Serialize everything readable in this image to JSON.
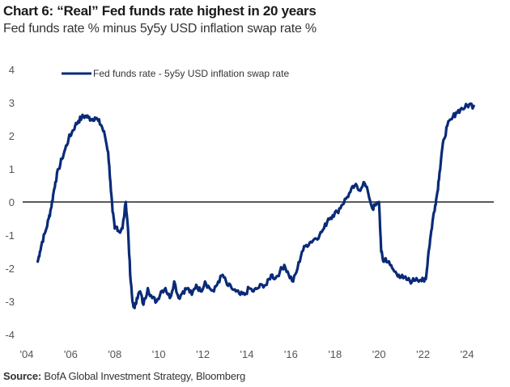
{
  "header": {
    "title": "Chart 6: “Real” Fed funds rate highest in 20 years",
    "subtitle": "Fed funds rate % minus 5y5y USD inflation swap rate %"
  },
  "footer": {
    "source_label": "Source:",
    "source_text": " BofA Global Investment Strategy, Bloomberg"
  },
  "colors": {
    "series": "#0a2a78",
    "zero_line": "#222222"
  },
  "chart_data": {
    "type": "line",
    "title": "Chart 6: “Real” Fed funds rate highest in 20 years",
    "subtitle": "Fed funds rate % minus 5y5y USD inflation swap rate %",
    "xlabel": "",
    "ylabel": "",
    "xlim": [
      2004,
      2025.2
    ],
    "ylim": [
      -4,
      4
    ],
    "y_ticks": [
      4,
      3,
      2,
      1,
      0,
      -1,
      -2,
      -3,
      -4
    ],
    "y_tick_labels": [
      "4",
      "3",
      "2",
      "1",
      "0",
      "-1",
      "-2",
      "-3",
      "-4"
    ],
    "x_ticks": [
      2004,
      2006,
      2008,
      2010,
      2012,
      2014,
      2016,
      2018,
      2020,
      2022,
      2024
    ],
    "x_tick_labels": [
      "'04",
      "'06",
      "'08",
      "'10",
      "'12",
      "'14",
      "'16",
      "'18",
      "'20",
      "'22",
      "'24"
    ],
    "grid": false,
    "reference_line": 0,
    "legend": {
      "position": "top-left",
      "entries": [
        "Fed funds rate - 5y5y USD inflation swap rate"
      ]
    },
    "series": [
      {
        "name": "Fed funds rate - 5y5y USD inflation swap rate",
        "x": [
          2004.5,
          2004.6,
          2004.7,
          2004.85,
          2005.0,
          2005.1,
          2005.2,
          2005.3,
          2005.45,
          2005.6,
          2005.75,
          2005.9,
          2006.05,
          2006.2,
          2006.35,
          2006.5,
          2006.65,
          2006.8,
          2006.95,
          2007.1,
          2007.25,
          2007.4,
          2007.55,
          2007.7,
          2007.8,
          2007.9,
          2008.0,
          2008.1,
          2008.2,
          2008.35,
          2008.5,
          2008.6,
          2008.7,
          2008.8,
          2008.9,
          2009.0,
          2009.15,
          2009.3,
          2009.5,
          2009.7,
          2009.9,
          2010.1,
          2010.3,
          2010.5,
          2010.7,
          2010.9,
          2011.1,
          2011.3,
          2011.5,
          2011.7,
          2011.9,
          2012.1,
          2012.3,
          2012.5,
          2012.7,
          2012.9,
          2013.1,
          2013.3,
          2013.5,
          2013.7,
          2013.9,
          2014.1,
          2014.3,
          2014.5,
          2014.7,
          2014.9,
          2015.1,
          2015.3,
          2015.5,
          2015.7,
          2015.9,
          2016.1,
          2016.3,
          2016.5,
          2016.7,
          2016.9,
          2017.1,
          2017.3,
          2017.5,
          2017.7,
          2017.9,
          2018.1,
          2018.3,
          2018.5,
          2018.7,
          2018.9,
          2019.1,
          2019.3,
          2019.5,
          2019.7,
          2019.85,
          2020.0,
          2020.1,
          2020.2,
          2020.3,
          2020.5,
          2020.7,
          2020.9,
          2021.1,
          2021.3,
          2021.5,
          2021.7,
          2021.9,
          2022.05,
          2022.15,
          2022.25,
          2022.35,
          2022.45,
          2022.55,
          2022.65,
          2022.75,
          2022.85,
          2022.95,
          2023.1,
          2023.3,
          2023.5,
          2023.7,
          2023.9,
          2024.1,
          2024.3
        ],
        "values": [
          -1.8,
          -1.5,
          -1.2,
          -0.9,
          -0.5,
          -0.2,
          0.2,
          0.6,
          1.0,
          1.3,
          1.6,
          1.9,
          2.1,
          2.3,
          2.45,
          2.55,
          2.6,
          2.55,
          2.5,
          2.55,
          2.45,
          2.3,
          2.0,
          1.5,
          0.6,
          -0.3,
          -0.8,
          -0.75,
          -0.9,
          -0.8,
          0.0,
          -0.8,
          -2.2,
          -3.0,
          -3.2,
          -2.9,
          -2.7,
          -3.1,
          -2.6,
          -2.9,
          -3.0,
          -2.7,
          -2.6,
          -2.9,
          -2.4,
          -2.9,
          -2.7,
          -2.6,
          -2.8,
          -2.5,
          -2.7,
          -2.4,
          -2.6,
          -2.7,
          -2.4,
          -2.2,
          -2.5,
          -2.6,
          -2.7,
          -2.8,
          -2.8,
          -2.6,
          -2.7,
          -2.6,
          -2.5,
          -2.5,
          -2.2,
          -2.3,
          -2.1,
          -1.9,
          -2.2,
          -2.4,
          -2.0,
          -1.5,
          -1.3,
          -1.2,
          -1.1,
          -1.0,
          -0.8,
          -0.5,
          -0.4,
          -0.3,
          -0.1,
          0.1,
          0.3,
          0.5,
          0.35,
          0.6,
          0.3,
          -0.2,
          -0.1,
          0.0,
          -1.5,
          -1.8,
          -1.7,
          -1.9,
          -2.1,
          -2.2,
          -2.3,
          -2.35,
          -2.4,
          -2.3,
          -2.35,
          -2.4,
          -2.2,
          -1.5,
          -1.0,
          -0.5,
          -0.1,
          0.3,
          0.9,
          1.5,
          1.9,
          2.3,
          2.5,
          2.7,
          2.8,
          2.85,
          2.95,
          2.9
        ]
      }
    ]
  }
}
